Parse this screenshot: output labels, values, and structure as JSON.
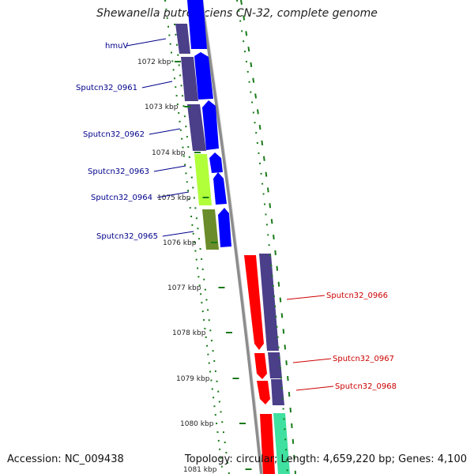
{
  "title": "Shewanella putrefaciens CN-32, complete genome",
  "footer": {
    "accession": "Accession: NC_009438",
    "summary": "Topology: circular; Length: 4,659,220 bp; Genes: 4,100"
  },
  "ticks": [
    "1072 kbp",
    "1073 kbp",
    "1074 kbp",
    "1075 kbp",
    "1076 kbp",
    "1077 kbp",
    "1078 kbp",
    "1079 kbp",
    "1080 kbp",
    "1081 kbp"
  ],
  "colors": {
    "cds_forward": "#0000ff",
    "cds_reverse": "#ff0000",
    "cog_purple": "#4b3f8a",
    "cog_lime": "#b0ff3a",
    "cog_olive": "#6b8c2a",
    "cog_teal": "#40e0a0",
    "tick_green": "#1a7a1a",
    "backbone": "#8c8c8c",
    "label_left": "#00008b",
    "label_right": "#cc0000"
  },
  "genes_left": [
    "hmuV",
    "Sputcn32_0961",
    "Sputcn32_0962",
    "Sputcn32_0963",
    "Sputcn32_0964",
    "Sputcn32_0965"
  ],
  "genes_right": [
    "Sputcn32_0966",
    "Sputcn32_0967",
    "Sputcn32_0968"
  ]
}
